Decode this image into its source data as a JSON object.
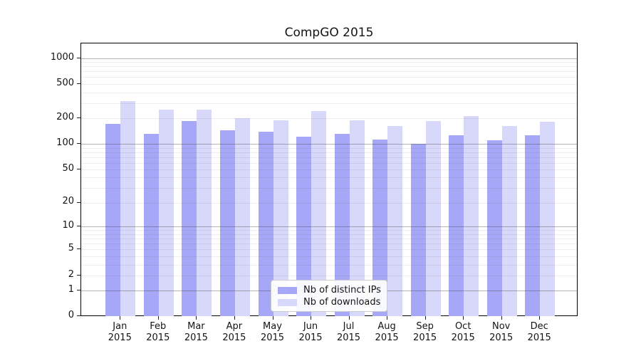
{
  "chart_data": {
    "type": "bar",
    "title": "CompGO 2015",
    "categories": [
      "Jan",
      "Feb",
      "Mar",
      "Apr",
      "May",
      "Jun",
      "Jul",
      "Aug",
      "Sep",
      "Oct",
      "Nov",
      "Dec"
    ],
    "category_year": "2015",
    "series": [
      {
        "name": "Nb of distinct IPs",
        "color": "#a7a7f7",
        "values": [
          172,
          131,
          185,
          144,
          139,
          122,
          130,
          112,
          100,
          127,
          110,
          125
        ]
      },
      {
        "name": "Nb of downloads",
        "color": "#d8d8fa",
        "values": [
          315,
          252,
          250,
          199,
          187,
          243,
          188,
          162,
          185,
          213,
          162,
          182
        ]
      }
    ],
    "y_axis": {
      "scale": "log1p",
      "ticks": [
        1000,
        500,
        200,
        100,
        50,
        20,
        10,
        5,
        2,
        1,
        0
      ],
      "min": 0,
      "max": 1480
    },
    "grid": "horizontal, minor log gridlines light, decade lines darker, drawn over bars",
    "legend_position": "lower center"
  }
}
